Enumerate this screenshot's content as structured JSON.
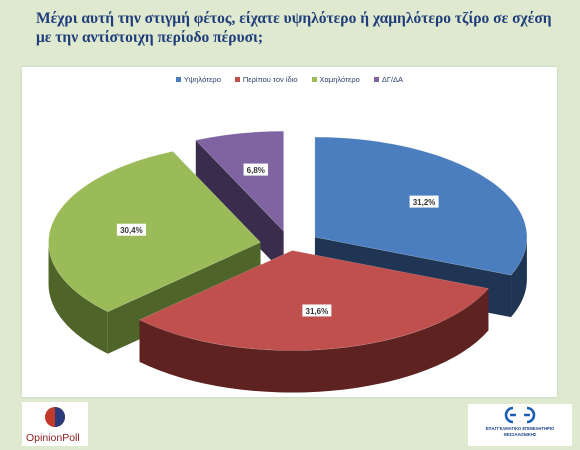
{
  "title": "Μέχρι αυτή την στιγμή φέτος, είχατε υψηλότερο ή χαμηλότερο τζίρο σε σχέση με την αντίστοιχη περίοδο πέρυσι;",
  "logos": {
    "left_text": "OpinionPoll",
    "right_line1": "ΕΠΑΓΓΕΛΜΑΤΙΚΟ ΕΠΙΜΕΛΗΤΗΡΙΟ",
    "right_line2": "ΘΕΣΣΑΛΟΝΙΚΗΣ"
  },
  "colors": {
    "background": "#dfe9cf",
    "title": "#1f3d7a"
  },
  "chart_data": {
    "type": "pie",
    "title": "",
    "legend_position": "top",
    "categories": [
      "Υψηλότερο",
      "Περίπου τον ίδιο",
      "Χαμηλότερο",
      "ΔΓ/ΔΑ"
    ],
    "values": [
      31.2,
      31.6,
      30.4,
      6.8
    ],
    "labels": [
      "31,2%",
      "31,6%",
      "30,4%",
      "6,8%"
    ],
    "colors": [
      "#4a7ebf",
      "#c0504d",
      "#9bbb59",
      "#8064a2"
    ],
    "side_colors": [
      "#1f3553",
      "#5e2221",
      "#4f6428",
      "#3a2c4c"
    ]
  }
}
